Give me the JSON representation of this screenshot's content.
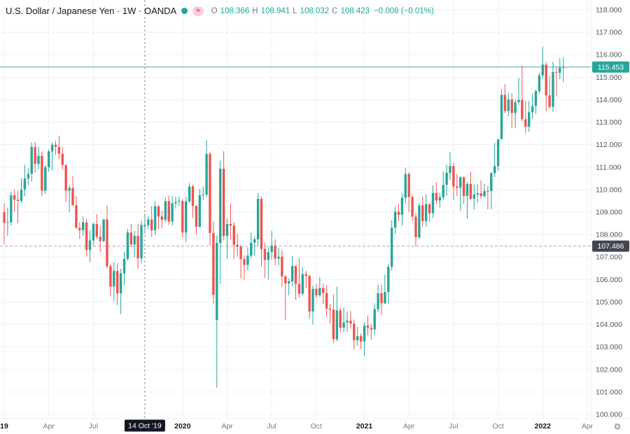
{
  "header": {
    "title": "U.S. Dollar / Japanese Yen · 1W · OANDA",
    "ohlc": {
      "open_label": "O",
      "open": "108.366",
      "high_label": "H",
      "high": "108.941",
      "low_label": "L",
      "low": "108.032",
      "close_label": "C",
      "close": "108.423",
      "change": "−0.008 (−0.01%)"
    }
  },
  "icons": {
    "flag_glyph": "≈",
    "gear_glyph": "⚙"
  },
  "colors": {
    "up": "#26a69a",
    "down": "#ef5350",
    "grid": "#eef1f7",
    "axis_text": "#50535e",
    "month_text": "#787b86",
    "year_text": "#131722",
    "crosshair": "#8b8f99",
    "crosshair_badge_bg": "#131722",
    "hline": "#a5a8b1",
    "hline_badge_bg": "#434651",
    "last_price": "#26a69a"
  },
  "chart_data": {
    "type": "candlestick",
    "title": "U.S. Dollar / Japanese Yen",
    "symbol": "USD/JPY",
    "timeframe": "1W",
    "source": "OANDA",
    "ylim": [
      100,
      118
    ],
    "y_tick_step": 1.0,
    "grid": true,
    "legend_position": "top-left",
    "y_ticks": [
      "118.000",
      "117.000",
      "116.000",
      "115.000",
      "114.000",
      "113.000",
      "112.000",
      "111.000",
      "110.000",
      "109.000",
      "108.000",
      "107.000",
      "106.000",
      "105.000",
      "104.000",
      "103.000",
      "102.000",
      "101.000",
      "100.000"
    ],
    "x_ticks": [
      {
        "index": 0,
        "label": "19",
        "year": true
      },
      {
        "index": 13,
        "label": "Apr",
        "year": false
      },
      {
        "index": 26,
        "label": "Jul",
        "year": false
      },
      {
        "index": 52,
        "label": "2020",
        "year": true
      },
      {
        "index": 65,
        "label": "Apr",
        "year": false
      },
      {
        "index": 78,
        "label": "Jul",
        "year": false
      },
      {
        "index": 91,
        "label": "Oct",
        "year": false
      },
      {
        "index": 105,
        "label": "2021",
        "year": true
      },
      {
        "index": 118,
        "label": "Apr",
        "year": false
      },
      {
        "index": 131,
        "label": "Jul",
        "year": false
      },
      {
        "index": 144,
        "label": "Oct",
        "year": false
      },
      {
        "index": 157,
        "label": "2022",
        "year": true
      },
      {
        "index": 170,
        "label": "Apr",
        "year": false
      }
    ],
    "crosshair": {
      "candle_index": 41,
      "time_label": "14 Oct '19"
    },
    "hovered_candle": {
      "open": 108.366,
      "high": 108.941,
      "low": 108.032,
      "close": 108.423,
      "change": -0.008,
      "change_pct": "-0.01%"
    },
    "last_price": {
      "value": 115.453,
      "label": "115.453"
    },
    "horizontal_line": {
      "value": 107.486,
      "label": "107.486"
    },
    "candles": [
      [
        109.0,
        109.4,
        107.55,
        108.52
      ],
      [
        108.52,
        109.2,
        107.95,
        108.55
      ],
      [
        108.55,
        109.9,
        108.4,
        109.75
      ],
      [
        109.75,
        110.0,
        109.0,
        109.55
      ],
      [
        109.55,
        109.95,
        108.5,
        109.5
      ],
      [
        109.5,
        110.5,
        109.4,
        110.0
      ],
      [
        110.0,
        111.1,
        109.7,
        110.5
      ],
      [
        110.5,
        110.95,
        110.2,
        110.7
      ],
      [
        110.7,
        112.1,
        110.35,
        111.9
      ],
      [
        111.9,
        112.13,
        110.75,
        111.15
      ],
      [
        111.15,
        111.9,
        110.9,
        111.5
      ],
      [
        111.5,
        111.7,
        109.7,
        109.95
      ],
      [
        109.95,
        111.1,
        109.8,
        111.0
      ],
      [
        111.0,
        111.8,
        110.8,
        111.7
      ],
      [
        111.7,
        112.1,
        110.85,
        112.0
      ],
      [
        112.0,
        112.17,
        111.55,
        111.9
      ],
      [
        111.9,
        112.4,
        111.35,
        111.6
      ],
      [
        111.6,
        111.9,
        110.9,
        111.1
      ],
      [
        111.1,
        111.1,
        109.45,
        109.95
      ],
      [
        109.95,
        110.2,
        109.0,
        110.08
      ],
      [
        110.08,
        110.6,
        109.3,
        109.3
      ],
      [
        109.3,
        109.7,
        108.25,
        108.3
      ],
      [
        108.3,
        108.55,
        107.8,
        108.2
      ],
      [
        108.2,
        108.8,
        107.95,
        108.55
      ],
      [
        108.55,
        108.72,
        107.02,
        107.32
      ],
      [
        107.32,
        108.18,
        106.78,
        107.74
      ],
      [
        107.74,
        108.53,
        107.52,
        108.47
      ],
      [
        108.47,
        108.9,
        107.8,
        107.9
      ],
      [
        107.9,
        108.38,
        107.21,
        107.71
      ],
      [
        107.71,
        108.68,
        107.65,
        108.68
      ],
      [
        108.68,
        109.32,
        106.5,
        106.59
      ],
      [
        106.59,
        106.68,
        105.25,
        105.69
      ],
      [
        105.69,
        106.78,
        105.05,
        106.38
      ],
      [
        106.38,
        106.73,
        104.87,
        105.39
      ],
      [
        105.39,
        106.48,
        104.46,
        106.28
      ],
      [
        106.28,
        107.23,
        105.75,
        106.92
      ],
      [
        106.92,
        108.26,
        106.85,
        108.09
      ],
      [
        108.09,
        108.47,
        107.44,
        107.56
      ],
      [
        107.56,
        108.17,
        106.96,
        107.94
      ],
      [
        107.94,
        108.47,
        106.48,
        106.94
      ],
      [
        106.94,
        108.62,
        106.71,
        108.431
      ],
      [
        108.366,
        108.941,
        108.032,
        108.423
      ],
      [
        108.423,
        108.83,
        108.25,
        108.67
      ],
      [
        108.67,
        109.28,
        107.89,
        108.19
      ],
      [
        108.19,
        109.49,
        107.97,
        109.26
      ],
      [
        109.26,
        109.32,
        108.24,
        108.8
      ],
      [
        108.8,
        109.07,
        108.28,
        108.66
      ],
      [
        108.66,
        109.67,
        108.55,
        109.49
      ],
      [
        109.49,
        109.73,
        108.43,
        108.58
      ],
      [
        108.58,
        109.71,
        108.4,
        109.39
      ],
      [
        109.39,
        109.68,
        109.15,
        109.45
      ],
      [
        109.45,
        109.7,
        109.26,
        109.49
      ],
      [
        109.49,
        109.57,
        107.88,
        108.09
      ],
      [
        108.09,
        109.69,
        107.65,
        109.48
      ],
      [
        109.48,
        110.29,
        109.4,
        110.14
      ],
      [
        110.14,
        110.22,
        108.73,
        109.28
      ],
      [
        109.28,
        109.3,
        107.98,
        108.35
      ],
      [
        108.35,
        110.03,
        108.31,
        109.75
      ],
      [
        109.75,
        110.13,
        109.53,
        109.78
      ],
      [
        109.78,
        112.22,
        109.65,
        111.59
      ],
      [
        111.59,
        111.68,
        107.51,
        108.07
      ],
      [
        108.07,
        108.59,
        104.92,
        105.32
      ],
      [
        104.2,
        107.96,
        101.18,
        107.63
      ],
      [
        107.63,
        111.29,
        105.81,
        110.93
      ],
      [
        110.93,
        111.71,
        107.74,
        107.94
      ],
      [
        107.94,
        108.72,
        106.92,
        108.47
      ],
      [
        108.47,
        109.38,
        107.77,
        108.4
      ],
      [
        108.4,
        108.55,
        106.92,
        107.54
      ],
      [
        107.54,
        108.04,
        107.02,
        107.46
      ],
      [
        107.46,
        107.52,
        106.04,
        106.91
      ],
      [
        106.91,
        107.08,
        105.99,
        106.65
      ],
      [
        106.65,
        107.43,
        106.41,
        107.06
      ],
      [
        107.06,
        108.09,
        106.95,
        107.64
      ],
      [
        107.64,
        107.9,
        107.06,
        107.79
      ],
      [
        107.79,
        109.85,
        107.51,
        109.59
      ],
      [
        109.59,
        109.7,
        106.58,
        107.36
      ],
      [
        107.36,
        107.64,
        106.07,
        106.87
      ],
      [
        106.87,
        107.45,
        106.0,
        107.22
      ],
      [
        107.22,
        108.16,
        106.88,
        107.51
      ],
      [
        107.51,
        107.79,
        106.64,
        106.93
      ],
      [
        106.93,
        107.42,
        106.63,
        107.02
      ],
      [
        107.02,
        107.31,
        105.68,
        106.14
      ],
      [
        106.14,
        106.2,
        104.19,
        105.83
      ],
      [
        105.83,
        106.05,
        105.29,
        105.92
      ],
      [
        105.92,
        107.05,
        105.7,
        106.6
      ],
      [
        106.6,
        106.63,
        105.1,
        105.8
      ],
      [
        105.8,
        106.95,
        105.2,
        105.37
      ],
      [
        105.37,
        106.55,
        105.28,
        106.24
      ],
      [
        106.24,
        106.38,
        105.61,
        106.16
      ],
      [
        106.16,
        106.22,
        104.27,
        104.58
      ],
      [
        104.58,
        105.74,
        104.0,
        105.58
      ],
      [
        105.58,
        105.8,
        105.17,
        105.3
      ],
      [
        105.3,
        106.11,
        105.23,
        105.62
      ],
      [
        105.62,
        105.83,
        104.92,
        105.4
      ],
      [
        105.4,
        105.75,
        104.34,
        104.71
      ],
      [
        104.71,
        104.92,
        104.03,
        104.66
      ],
      [
        104.66,
        105.34,
        103.18,
        103.35
      ],
      [
        103.35,
        105.68,
        103.25,
        104.63
      ],
      [
        104.63,
        104.76,
        103.65,
        103.86
      ],
      [
        103.86,
        104.76,
        103.65,
        104.09
      ],
      [
        104.09,
        104.58,
        103.67,
        104.17
      ],
      [
        104.17,
        104.6,
        103.81,
        104.04
      ],
      [
        104.04,
        104.22,
        102.88,
        103.3
      ],
      [
        103.3,
        103.9,
        103.05,
        103.48
      ],
      [
        103.48,
        103.6,
        102.9,
        103.25
      ],
      [
        103.25,
        104.09,
        102.59,
        103.95
      ],
      [
        103.95,
        104.4,
        103.52,
        103.85
      ],
      [
        103.85,
        104.01,
        103.33,
        103.78
      ],
      [
        103.78,
        104.94,
        103.55,
        104.68
      ],
      [
        104.68,
        105.77,
        104.55,
        105.39
      ],
      [
        105.39,
        105.77,
        104.41,
        104.94
      ],
      [
        104.94,
        106.22,
        104.92,
        105.45
      ],
      [
        105.45,
        106.69,
        104.93,
        106.57
      ],
      [
        106.57,
        108.64,
        106.41,
        108.31
      ],
      [
        108.31,
        109.23,
        108.02,
        109.02
      ],
      [
        109.02,
        109.36,
        108.6,
        108.88
      ],
      [
        108.88,
        109.85,
        108.4,
        109.64
      ],
      [
        109.64,
        110.97,
        109.36,
        110.69
      ],
      [
        110.69,
        110.77,
        109.01,
        109.67
      ],
      [
        109.67,
        109.78,
        108.61,
        108.8
      ],
      [
        108.8,
        108.95,
        107.48,
        107.88
      ],
      [
        107.88,
        109.39,
        107.8,
        109.3
      ],
      [
        109.3,
        109.69,
        108.34,
        108.6
      ],
      [
        108.6,
        109.79,
        108.34,
        109.35
      ],
      [
        109.35,
        109.39,
        108.56,
        108.95
      ],
      [
        108.95,
        110.2,
        108.73,
        109.85
      ],
      [
        109.85,
        110.33,
        109.33,
        109.52
      ],
      [
        109.52,
        109.84,
        109.19,
        109.66
      ],
      [
        109.66,
        110.82,
        109.53,
        110.21
      ],
      [
        110.21,
        111.11,
        109.72,
        110.75
      ],
      [
        110.75,
        111.66,
        110.42,
        111.05
      ],
      [
        111.05,
        111.19,
        109.53,
        110.14
      ],
      [
        110.14,
        110.7,
        109.72,
        110.08
      ],
      [
        110.08,
        110.59,
        109.07,
        110.55
      ],
      [
        110.55,
        110.59,
        109.36,
        109.72
      ],
      [
        109.72,
        110.33,
        108.72,
        110.25
      ],
      [
        110.25,
        110.8,
        109.54,
        109.59
      ],
      [
        109.59,
        110.23,
        109.11,
        109.78
      ],
      [
        109.78,
        110.26,
        109.41,
        109.84
      ],
      [
        109.84,
        110.42,
        109.59,
        109.71
      ],
      [
        109.71,
        110.27,
        109.63,
        109.94
      ],
      [
        109.94,
        110.17,
        109.11,
        109.93
      ],
      [
        109.93,
        110.79,
        109.12,
        110.73
      ],
      [
        110.73,
        112.08,
        110.56,
        111.05
      ],
      [
        111.05,
        112.25,
        110.82,
        112.24
      ],
      [
        112.24,
        114.46,
        112.23,
        114.22
      ],
      [
        114.22,
        114.7,
        113.4,
        113.5
      ],
      [
        113.5,
        114.31,
        113.26,
        114.01
      ],
      [
        114.01,
        114.28,
        112.73,
        113.41
      ],
      [
        113.41,
        114.01,
        112.73,
        113.89
      ],
      [
        113.89,
        114.97,
        113.75,
        113.99
      ],
      [
        113.99,
        115.52,
        113.05,
        113.13
      ],
      [
        113.13,
        113.94,
        112.53,
        112.8
      ],
      [
        112.8,
        113.95,
        112.56,
        113.44
      ],
      [
        113.44,
        114.27,
        113.15,
        113.72
      ],
      [
        113.72,
        114.44,
        113.37,
        114.38
      ],
      [
        114.38,
        115.2,
        114.27,
        115.08
      ],
      [
        115.08,
        116.35,
        114.95,
        115.56
      ],
      [
        115.56,
        115.68,
        113.48,
        114.19
      ],
      [
        114.19,
        115.06,
        113.59,
        113.68
      ],
      [
        113.68,
        115.69,
        113.46,
        115.23
      ],
      [
        115.23,
        115.44,
        114.15,
        115.2
      ],
      [
        115.2,
        115.85,
        114.92,
        115.42
      ],
      [
        115.42,
        115.87,
        114.78,
        115.453
      ]
    ]
  }
}
